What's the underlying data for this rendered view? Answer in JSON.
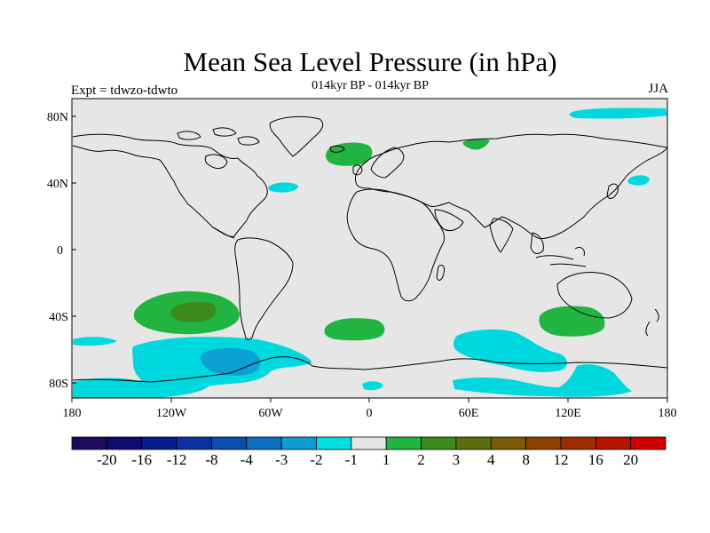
{
  "title": "Mean Sea Level Pressure (in hPa)",
  "left_label": "Expt = tdwzo-tdwto",
  "center_label": "014kyr BP - 014kyr BP",
  "right_label": "JJA",
  "lat_ticks": [
    "80N",
    "40N",
    "0",
    "40S",
    "80S"
  ],
  "lon_ticks": [
    "180",
    "120W",
    "60W",
    "0",
    "60E",
    "120E",
    "180"
  ],
  "colorbar": {
    "colors": [
      "#1d0a5e",
      "#0c0d6e",
      "#0a1d8c",
      "#0b32a0",
      "#0c4db0",
      "#0c6fc0",
      "#0a9cd2",
      "#00e0e0",
      "#e6e6e6",
      "#22b440",
      "#3c8a1e",
      "#5a6e0e",
      "#7a5a06",
      "#8c4004",
      "#a02c02",
      "#b41400",
      "#cc0000"
    ],
    "labels": [
      "-20",
      "-16",
      "-12",
      "-8",
      "-4",
      "-3",
      "-2",
      "-1",
      "1",
      "2",
      "3",
      "4",
      "8",
      "12",
      "16",
      "20"
    ]
  },
  "field_colors": {
    "background": "#e6e6e6",
    "neg1": "#00d8e0",
    "neg2": "#0aa0d4",
    "pos1": "#22b440",
    "pos2": "#3c8a1e"
  }
}
